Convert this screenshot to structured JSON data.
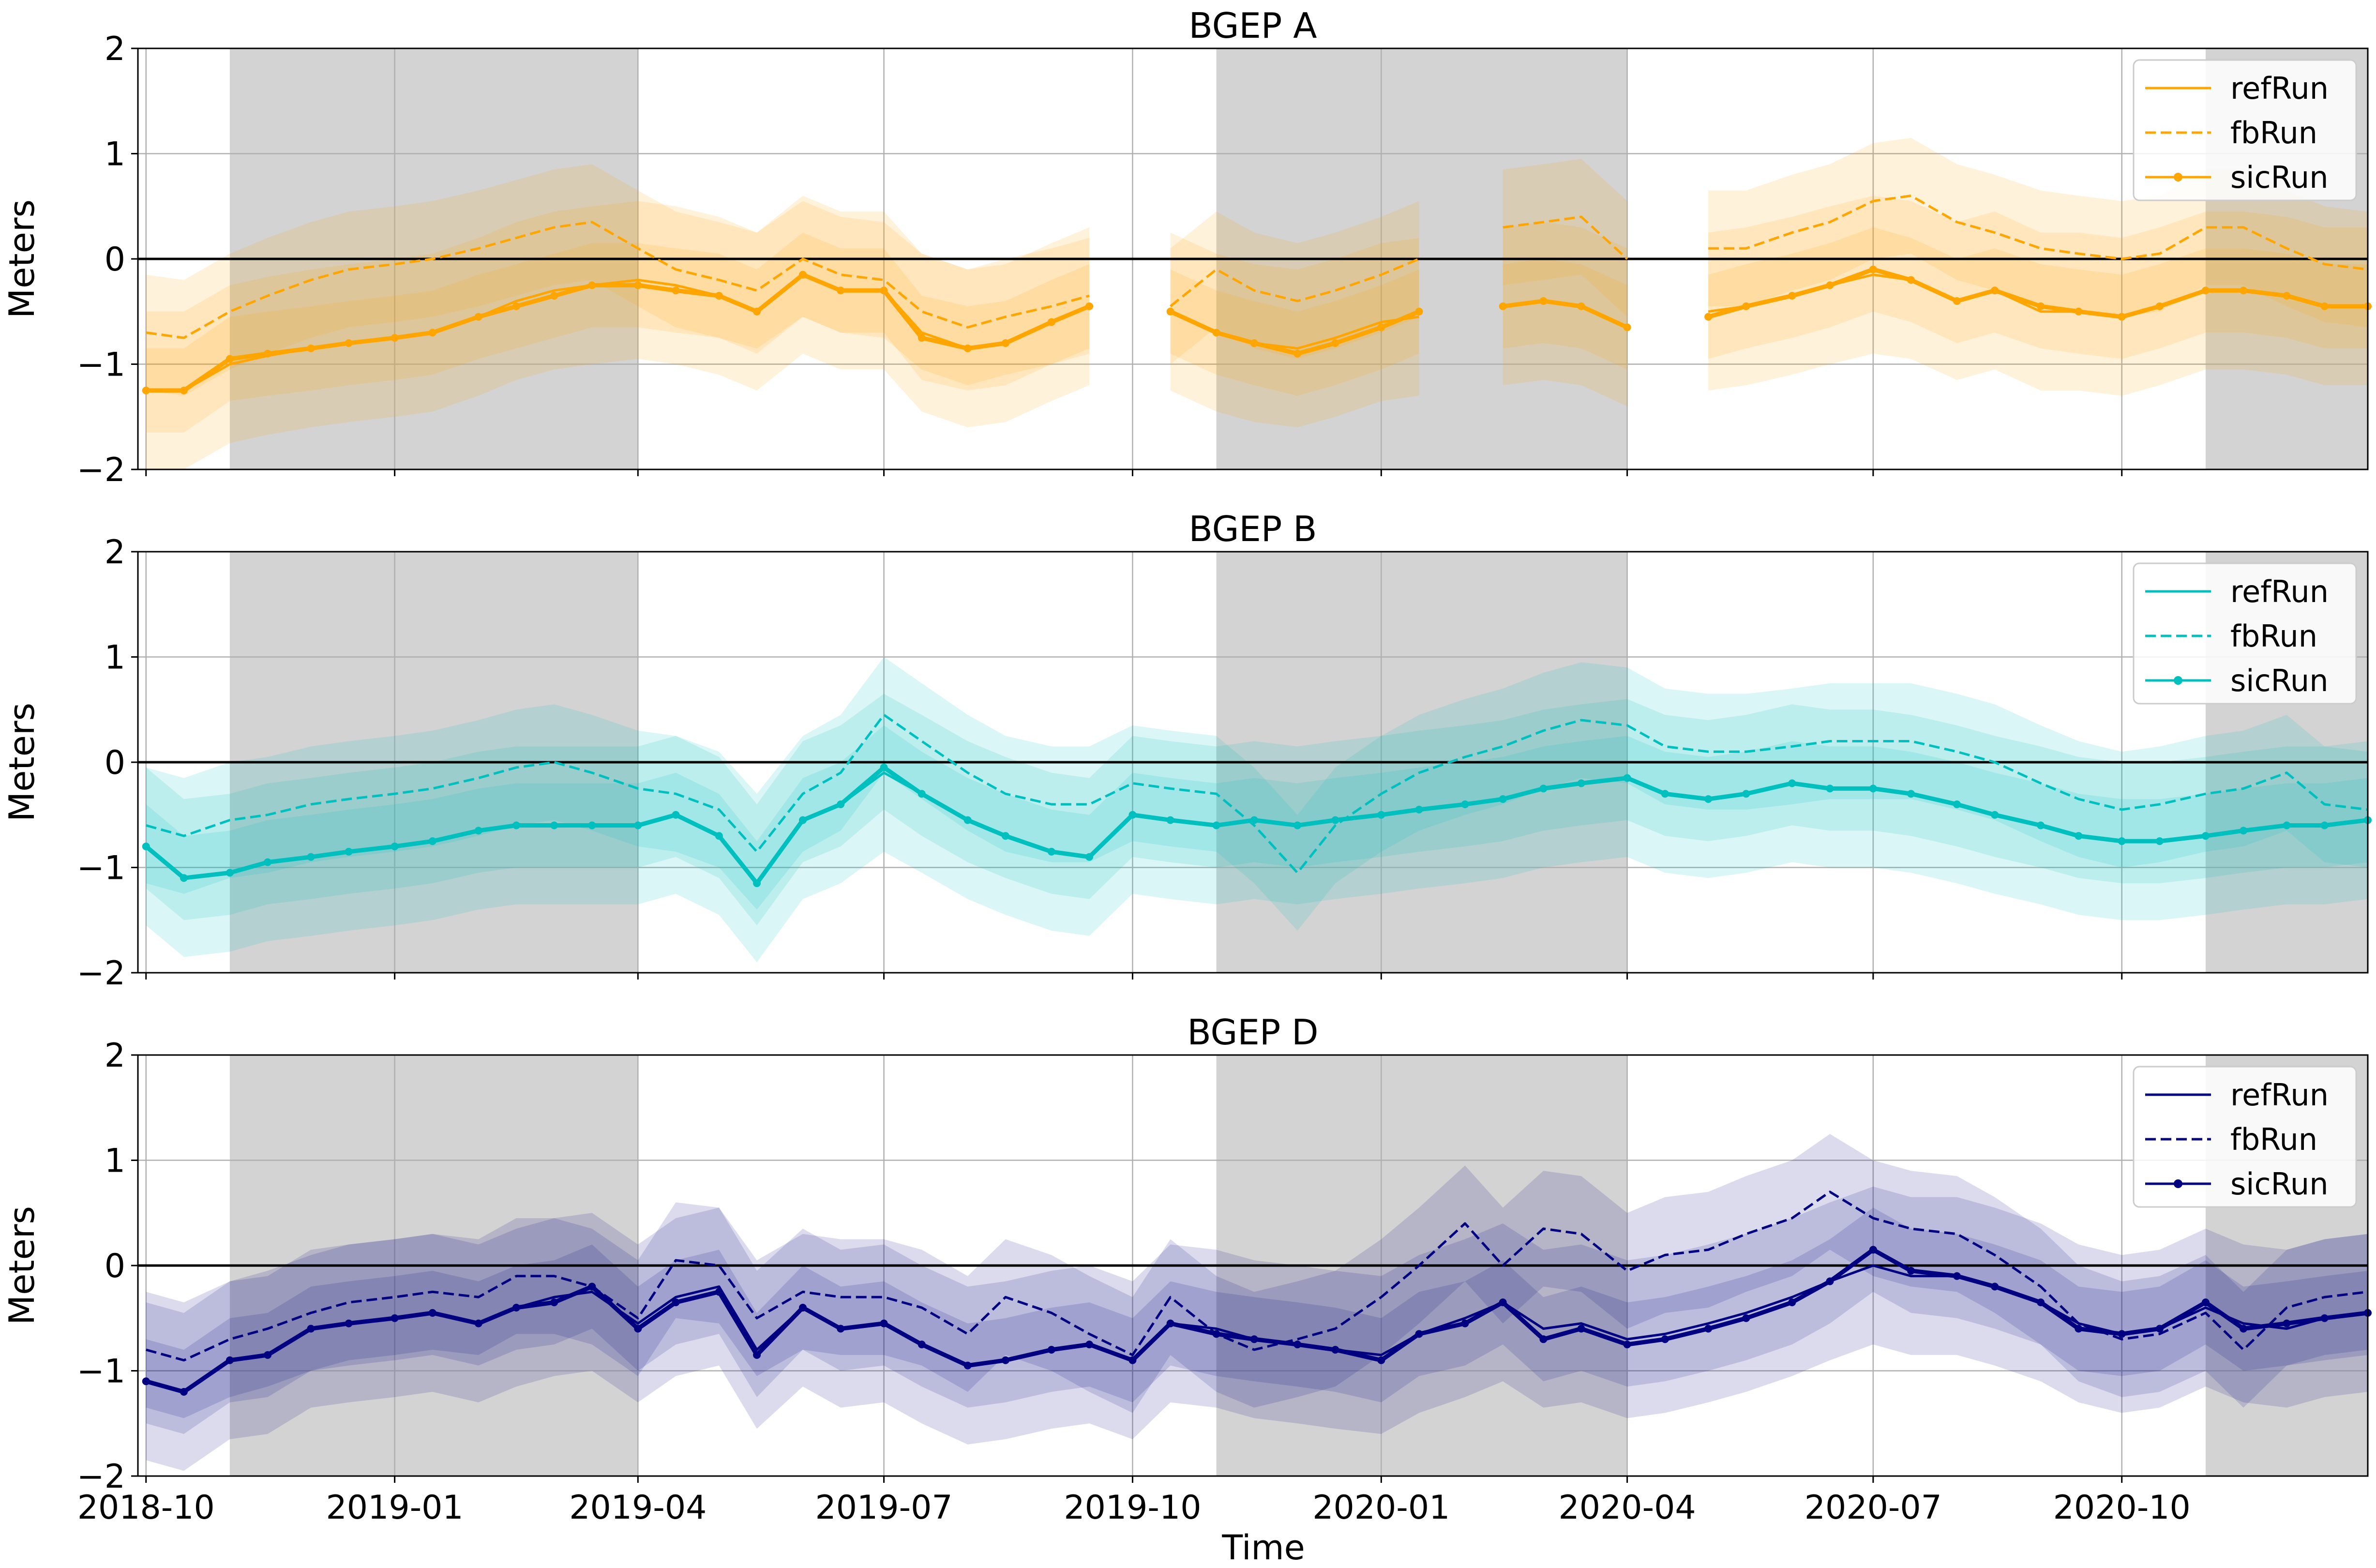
{
  "figure": {
    "xlabel": "Time",
    "x_ticks": [
      "2018-10",
      "2019-01",
      "2019-04",
      "2019-07",
      "2019-10",
      "2020-01",
      "2020-04",
      "2020-07",
      "2020-10"
    ],
    "x_tick_dates": [
      "2018-10-01",
      "2019-01-01",
      "2019-04-01",
      "2019-07-01",
      "2019-10-01",
      "2020-01-01",
      "2020-04-01",
      "2020-07-01",
      "2020-10-01"
    ],
    "xlim": [
      "2018-09-28",
      "2020-12-31"
    ],
    "shaded_periods": [
      [
        "2018-11-01",
        "2019-04-01"
      ],
      [
        "2019-11-01",
        "2020-04-01"
      ],
      [
        "2020-11-01",
        "2020-12-31"
      ]
    ],
    "shade_color": "#d3d3d3"
  },
  "chart_data": [
    {
      "type": "line",
      "title": "BGEP A",
      "ylabel": "Meters",
      "ylim": [
        -2,
        2
      ],
      "y_ticks": [
        "2",
        "1",
        "0",
        "−1",
        "−2"
      ],
      "y_tick_values": [
        2,
        1,
        0,
        -1,
        -2
      ],
      "grid": true,
      "zero_line": true,
      "legend": "top-right",
      "color": "#ffa500",
      "x": [
        "2018-10-01",
        "2018-10-15",
        "2018-11-01",
        "2018-11-15",
        "2018-12-01",
        "2018-12-15",
        "2019-01-01",
        "2019-01-15",
        "2019-02-01",
        "2019-02-15",
        "2019-03-01",
        "2019-03-15",
        "2019-04-01",
        "2019-04-15",
        "2019-05-01",
        "2019-05-15",
        "2019-06-01",
        "2019-06-15",
        "2019-07-01",
        "2019-07-15",
        "2019-08-01",
        "2019-08-15",
        "2019-09-01",
        "2019-09-15",
        "2019-10-01",
        "2019-10-15",
        "2019-11-01",
        "2019-11-15",
        "2019-12-01",
        "2019-12-15",
        "2020-01-01",
        "2020-01-15",
        "2020-02-01",
        "2020-02-15",
        "2020-03-01",
        "2020-03-15",
        "2020-04-01",
        "2020-04-15",
        "2020-05-01",
        "2020-05-15",
        "2020-06-01",
        "2020-06-15",
        "2020-07-01",
        "2020-07-15",
        "2020-08-01",
        "2020-08-15",
        "2020-09-01",
        "2020-09-15",
        "2020-10-01",
        "2020-10-15",
        "2020-11-01",
        "2020-11-15",
        "2020-12-01",
        "2020-12-15",
        "2020-12-31"
      ],
      "series": [
        {
          "name": "refRun",
          "style": "solid",
          "values": [
            -1.25,
            -1.25,
            -1.0,
            -0.92,
            -0.85,
            -0.8,
            -0.75,
            -0.7,
            -0.55,
            -0.4,
            -0.3,
            -0.25,
            -0.2,
            -0.25,
            -0.35,
            -0.5,
            -0.15,
            -0.3,
            -0.3,
            -0.7,
            -0.85,
            -0.8,
            -0.6,
            -0.45,
            null,
            -0.5,
            -0.7,
            -0.8,
            -0.85,
            -0.75,
            -0.6,
            -0.55,
            null,
            -0.45,
            -0.4,
            -0.45,
            -0.65,
            null,
            -0.5,
            -0.45,
            -0.35,
            -0.25,
            -0.15,
            -0.2,
            -0.4,
            -0.3,
            -0.5,
            -0.5,
            -0.55,
            -0.45,
            -0.3,
            -0.3,
            -0.35,
            -0.45,
            -0.45
          ]
        },
        {
          "name": "fbRun",
          "style": "dashed",
          "values": [
            -0.7,
            -0.75,
            -0.5,
            -0.35,
            -0.2,
            -0.1,
            -0.05,
            0.0,
            0.1,
            0.2,
            0.3,
            0.35,
            0.1,
            -0.1,
            -0.2,
            -0.3,
            0.0,
            -0.15,
            -0.2,
            -0.5,
            -0.65,
            -0.55,
            -0.45,
            -0.35,
            null,
            -0.45,
            -0.1,
            -0.3,
            -0.4,
            -0.3,
            -0.15,
            0.0,
            null,
            0.3,
            0.35,
            0.4,
            0.0,
            null,
            0.1,
            0.1,
            0.25,
            0.35,
            0.55,
            0.6,
            0.35,
            0.25,
            0.1,
            0.05,
            0.0,
            0.05,
            0.3,
            0.3,
            0.1,
            -0.05,
            -0.1
          ]
        },
        {
          "name": "sicRun",
          "style": "solid-marker",
          "values": [
            -1.25,
            -1.25,
            -0.95,
            -0.9,
            -0.85,
            -0.8,
            -0.75,
            -0.7,
            -0.55,
            -0.45,
            -0.35,
            -0.25,
            -0.25,
            -0.3,
            -0.35,
            -0.5,
            -0.15,
            -0.3,
            -0.3,
            -0.75,
            -0.85,
            -0.8,
            -0.6,
            -0.45,
            null,
            -0.5,
            -0.7,
            -0.8,
            -0.9,
            -0.8,
            -0.65,
            -0.5,
            null,
            -0.45,
            -0.4,
            -0.45,
            -0.65,
            null,
            -0.55,
            -0.45,
            -0.35,
            -0.25,
            -0.1,
            -0.2,
            -0.4,
            -0.3,
            -0.45,
            -0.5,
            -0.55,
            -0.45,
            -0.3,
            -0.3,
            -0.35,
            -0.45,
            -0.45
          ]
        }
      ]
    },
    {
      "type": "line",
      "title": "BGEP B",
      "ylabel": "Meters",
      "ylim": [
        -2,
        2
      ],
      "y_ticks": [
        "2",
        "1",
        "0",
        "−1",
        "−2"
      ],
      "y_tick_values": [
        2,
        1,
        0,
        -1,
        -2
      ],
      "grid": true,
      "zero_line": true,
      "legend": "top-right",
      "color": "#00bfbf",
      "x": [
        "2018-10-01",
        "2018-10-15",
        "2018-11-01",
        "2018-11-15",
        "2018-12-01",
        "2018-12-15",
        "2019-01-01",
        "2019-01-15",
        "2019-02-01",
        "2019-02-15",
        "2019-03-01",
        "2019-03-15",
        "2019-04-01",
        "2019-04-15",
        "2019-05-01",
        "2019-05-15",
        "2019-06-01",
        "2019-06-15",
        "2019-07-01",
        "2019-07-15",
        "2019-08-01",
        "2019-08-15",
        "2019-09-01",
        "2019-09-15",
        "2019-10-01",
        "2019-10-15",
        "2019-11-01",
        "2019-11-15",
        "2019-12-01",
        "2019-12-15",
        "2020-01-01",
        "2020-01-15",
        "2020-02-01",
        "2020-02-15",
        "2020-03-01",
        "2020-03-15",
        "2020-04-01",
        "2020-04-15",
        "2020-05-01",
        "2020-05-15",
        "2020-06-01",
        "2020-06-15",
        "2020-07-01",
        "2020-07-15",
        "2020-08-01",
        "2020-08-15",
        "2020-09-01",
        "2020-09-15",
        "2020-10-01",
        "2020-10-15",
        "2020-11-01",
        "2020-11-15",
        "2020-12-01",
        "2020-12-15",
        "2020-12-31"
      ],
      "series": [
        {
          "name": "refRun",
          "style": "solid",
          "values": [
            -0.8,
            -1.1,
            -1.05,
            -0.95,
            -0.9,
            -0.85,
            -0.8,
            -0.75,
            -0.65,
            -0.6,
            -0.6,
            -0.6,
            -0.6,
            -0.5,
            -0.7,
            -1.15,
            -0.55,
            -0.4,
            -0.1,
            -0.3,
            -0.55,
            -0.7,
            -0.85,
            -0.9,
            -0.5,
            -0.55,
            -0.6,
            -0.55,
            -0.6,
            -0.55,
            -0.5,
            -0.45,
            -0.4,
            -0.35,
            -0.25,
            -0.2,
            -0.15,
            -0.3,
            -0.35,
            -0.3,
            -0.2,
            -0.25,
            -0.25,
            -0.3,
            -0.4,
            -0.5,
            -0.6,
            -0.7,
            -0.75,
            -0.75,
            -0.7,
            -0.65,
            -0.6,
            -0.6,
            -0.55
          ]
        },
        {
          "name": "fbRun",
          "style": "dashed",
          "values": [
            -0.6,
            -0.7,
            -0.55,
            -0.5,
            -0.4,
            -0.35,
            -0.3,
            -0.25,
            -0.15,
            -0.05,
            0.0,
            -0.1,
            -0.25,
            -0.3,
            -0.45,
            -0.85,
            -0.3,
            -0.1,
            0.45,
            0.2,
            -0.1,
            -0.3,
            -0.4,
            -0.4,
            -0.2,
            -0.25,
            -0.3,
            -0.6,
            -1.05,
            -0.6,
            -0.3,
            -0.1,
            0.05,
            0.15,
            0.3,
            0.4,
            0.35,
            0.15,
            0.1,
            0.1,
            0.15,
            0.2,
            0.2,
            0.2,
            0.1,
            0.0,
            -0.2,
            -0.35,
            -0.45,
            -0.4,
            -0.3,
            -0.25,
            -0.1,
            -0.4,
            -0.45
          ]
        },
        {
          "name": "sicRun",
          "style": "solid-marker",
          "values": [
            -0.8,
            -1.1,
            -1.05,
            -0.95,
            -0.9,
            -0.85,
            -0.8,
            -0.75,
            -0.65,
            -0.6,
            -0.6,
            -0.6,
            -0.6,
            -0.5,
            -0.7,
            -1.15,
            -0.55,
            -0.4,
            -0.05,
            -0.3,
            -0.55,
            -0.7,
            -0.85,
            -0.9,
            -0.5,
            -0.55,
            -0.6,
            -0.55,
            -0.6,
            -0.55,
            -0.5,
            -0.45,
            -0.4,
            -0.35,
            -0.25,
            -0.2,
            -0.15,
            -0.3,
            -0.35,
            -0.3,
            -0.2,
            -0.25,
            -0.25,
            -0.3,
            -0.4,
            -0.5,
            -0.6,
            -0.7,
            -0.75,
            -0.75,
            -0.7,
            -0.65,
            -0.6,
            -0.6,
            -0.55
          ]
        }
      ]
    },
    {
      "type": "line",
      "title": "BGEP D",
      "ylabel": "Meters",
      "ylim": [
        -2,
        2
      ],
      "y_ticks": [
        "2",
        "1",
        "0",
        "−1",
        "−2"
      ],
      "y_tick_values": [
        2,
        1,
        0,
        -1,
        -2
      ],
      "grid": true,
      "zero_line": true,
      "legend": "top-right",
      "color": "#000080",
      "x": [
        "2018-10-01",
        "2018-10-15",
        "2018-11-01",
        "2018-11-15",
        "2018-12-01",
        "2018-12-15",
        "2019-01-01",
        "2019-01-15",
        "2019-02-01",
        "2019-02-15",
        "2019-03-01",
        "2019-03-15",
        "2019-04-01",
        "2019-04-15",
        "2019-05-01",
        "2019-05-15",
        "2019-06-01",
        "2019-06-15",
        "2019-07-01",
        "2019-07-15",
        "2019-08-01",
        "2019-08-15",
        "2019-09-01",
        "2019-09-15",
        "2019-10-01",
        "2019-10-15",
        "2019-11-01",
        "2019-11-15",
        "2019-12-01",
        "2019-12-15",
        "2020-01-01",
        "2020-01-15",
        "2020-02-01",
        "2020-02-15",
        "2020-03-01",
        "2020-03-15",
        "2020-04-01",
        "2020-04-15",
        "2020-05-01",
        "2020-05-15",
        "2020-06-01",
        "2020-06-15",
        "2020-07-01",
        "2020-07-15",
        "2020-08-01",
        "2020-08-15",
        "2020-09-01",
        "2020-09-15",
        "2020-10-01",
        "2020-10-15",
        "2020-11-01",
        "2020-11-15",
        "2020-12-01",
        "2020-12-15",
        "2020-12-31"
      ],
      "series": [
        {
          "name": "refRun",
          "style": "solid",
          "values": [
            -1.1,
            -1.2,
            -0.9,
            -0.85,
            -0.6,
            -0.55,
            -0.5,
            -0.45,
            -0.55,
            -0.4,
            -0.3,
            -0.25,
            -0.55,
            -0.3,
            -0.2,
            -0.8,
            -0.4,
            -0.6,
            -0.55,
            -0.75,
            -0.95,
            -0.9,
            -0.8,
            -0.75,
            -0.9,
            -0.55,
            -0.6,
            -0.7,
            -0.75,
            -0.8,
            -0.85,
            -0.65,
            -0.5,
            -0.35,
            -0.6,
            -0.55,
            -0.7,
            -0.65,
            -0.55,
            -0.45,
            -0.3,
            -0.15,
            0.0,
            -0.1,
            -0.1,
            -0.2,
            -0.35,
            -0.55,
            -0.65,
            -0.6,
            -0.4,
            -0.55,
            -0.6,
            -0.5,
            -0.45
          ]
        },
        {
          "name": "fbRun",
          "style": "dashed",
          "values": [
            -0.8,
            -0.9,
            -0.7,
            -0.6,
            -0.45,
            -0.35,
            -0.3,
            -0.25,
            -0.3,
            -0.1,
            -0.1,
            -0.2,
            -0.5,
            0.05,
            0.0,
            -0.5,
            -0.25,
            -0.3,
            -0.3,
            -0.4,
            -0.65,
            -0.3,
            -0.45,
            -0.65,
            -0.85,
            -0.3,
            -0.65,
            -0.8,
            -0.7,
            -0.6,
            -0.3,
            0.0,
            0.4,
            0.0,
            0.35,
            0.3,
            -0.05,
            0.1,
            0.15,
            0.3,
            0.45,
            0.7,
            0.45,
            0.35,
            0.3,
            0.1,
            -0.2,
            -0.55,
            -0.7,
            -0.65,
            -0.45,
            -0.8,
            -0.4,
            -0.3,
            -0.25
          ]
        },
        {
          "name": "sicRun",
          "style": "solid-marker",
          "values": [
            -1.1,
            -1.2,
            -0.9,
            -0.85,
            -0.6,
            -0.55,
            -0.5,
            -0.45,
            -0.55,
            -0.4,
            -0.35,
            -0.2,
            -0.6,
            -0.35,
            -0.25,
            -0.85,
            -0.4,
            -0.6,
            -0.55,
            -0.75,
            -0.95,
            -0.9,
            -0.8,
            -0.75,
            -0.9,
            -0.55,
            -0.65,
            -0.7,
            -0.75,
            -0.8,
            -0.9,
            -0.65,
            -0.55,
            -0.35,
            -0.7,
            -0.6,
            -0.75,
            -0.7,
            -0.6,
            -0.5,
            -0.35,
            -0.15,
            0.15,
            -0.05,
            -0.1,
            -0.2,
            -0.35,
            -0.6,
            -0.65,
            -0.6,
            -0.35,
            -0.6,
            -0.55,
            -0.5,
            -0.45
          ]
        }
      ]
    }
  ]
}
